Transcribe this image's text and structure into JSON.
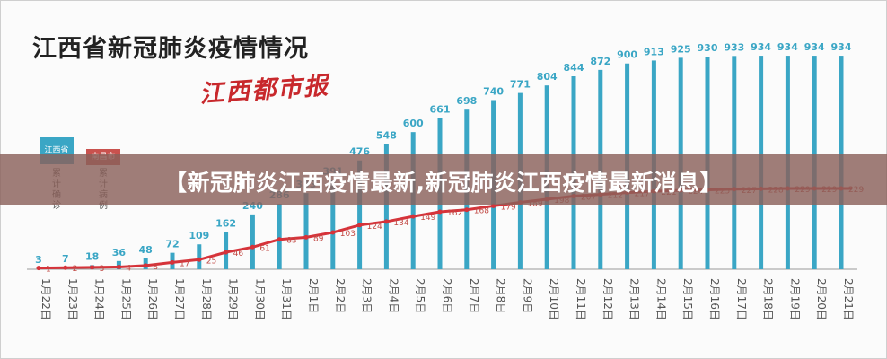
{
  "header": {
    "title": "江西省新冠肺炎疫情情况",
    "logo_text": "江西都市报"
  },
  "legend": {
    "province_label": "江西省",
    "province_caption": "累计确诊",
    "city_label": "南昌市",
    "city_caption": "累计病例"
  },
  "banner": {
    "text": "【新冠肺炎江西疫情最新,新冠肺炎江西疫情最新消息】"
  },
  "colors": {
    "bar": "#3aa6c5",
    "line": "#d6333a",
    "province_legend": "#3aa6c5",
    "city_legend": "#c9524e",
    "banner": "#8a605a"
  },
  "chart_data": {
    "type": "bar",
    "categories": [
      "1月22日",
      "1月23日",
      "1月24日",
      "1月25日",
      "1月26日",
      "1月27日",
      "1月28日",
      "1月29日",
      "1月30日",
      "1月31日",
      "2月1日",
      "2月2日",
      "2月3日",
      "2月4日",
      "2月5日",
      "2月6日",
      "2月7日",
      "2月8日",
      "2月9日",
      "2月10日",
      "2月11日",
      "2月12日",
      "2月13日",
      "2月14日",
      "2月15日",
      "2月16日",
      "2月17日",
      "2月18日",
      "2月19日",
      "2月20日",
      "2月21日"
    ],
    "series": [
      {
        "name": "江西省累计确诊",
        "type": "bar",
        "values": [
          3,
          7,
          18,
          36,
          48,
          72,
          109,
          162,
          240,
          286,
          333,
          391,
          476,
          548,
          600,
          661,
          698,
          740,
          771,
          804,
          844,
          872,
          900,
          913,
          925,
          930,
          933,
          934,
          934,
          934,
          934
        ]
      },
      {
        "name": "南昌市累计病例",
        "type": "line",
        "values": [
          1,
          2,
          3,
          4,
          8,
          17,
          25,
          46,
          61,
          83,
          89,
          103,
          124,
          134,
          149,
          162,
          168,
          179,
          189,
          198,
          207,
          212,
          217,
          221,
          224,
          225,
          227,
          228,
          229,
          229,
          229
        ]
      }
    ],
    "ylim": [
      0,
      950
    ],
    "grid": false,
    "legend_position": "left"
  }
}
